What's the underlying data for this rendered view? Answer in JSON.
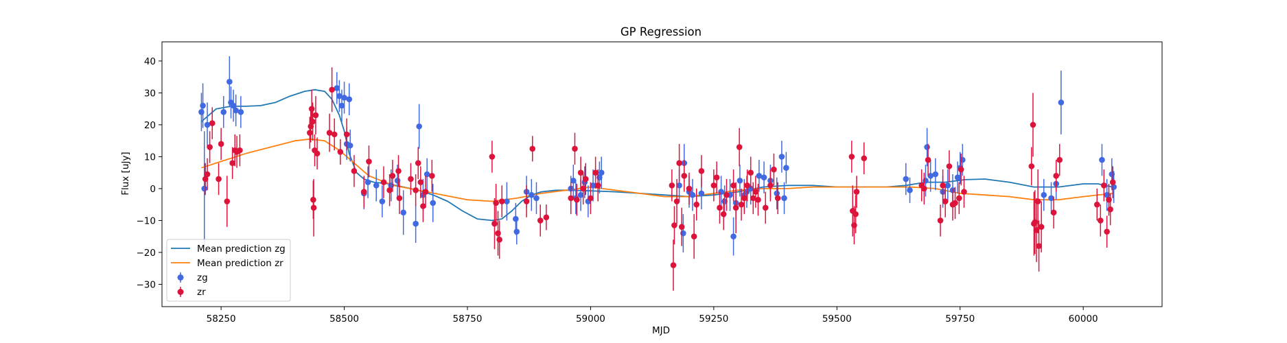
{
  "chart_data": {
    "type": "scatter",
    "title": "GP Regression",
    "xlabel": "MJD",
    "ylabel": "Flux [uJy]",
    "xlim": [
      58130,
      60160
    ],
    "ylim": [
      -37,
      46
    ],
    "xticks": [
      58250,
      58500,
      58750,
      59000,
      59250,
      59500,
      59750,
      60000
    ],
    "yticks": [
      -30,
      -20,
      -10,
      0,
      10,
      20,
      30,
      40
    ],
    "grid": false,
    "legend_position": "lower-left",
    "colors": {
      "zg_points": "#4169e1",
      "zr_points": "#dc143c",
      "zg_line": "#1f77b4",
      "zr_line": "#ff7f0e"
    },
    "lines": [
      {
        "name": "Mean prediction zg",
        "color": "#1f77b4",
        "x": [
          58210,
          58240,
          58270,
          58300,
          58330,
          58360,
          58390,
          58420,
          58440,
          58460,
          58475,
          58490,
          58500,
          58510,
          58525,
          58540,
          58560,
          58590,
          58620,
          58650,
          58680,
          58710,
          58740,
          58770,
          58800,
          58820,
          58840,
          58860,
          58880,
          58900,
          58930,
          58960,
          59000,
          59050,
          59100,
          59150,
          59200,
          59250,
          59300,
          59350,
          59400,
          59450,
          59500,
          59550,
          59600,
          59640,
          59680,
          59720,
          59760,
          59800,
          59850,
          59900,
          59950,
          60000,
          60030,
          60060
        ],
        "y": [
          21,
          25,
          25.8,
          25.8,
          26,
          27,
          29,
          30.5,
          31,
          30.5,
          28,
          23,
          18,
          11,
          5,
          3,
          2,
          1.5,
          0.5,
          -0.5,
          -2,
          -4,
          -7,
          -9.5,
          -10,
          -9.5,
          -7,
          -4,
          -2,
          -1,
          -0.5,
          -0.5,
          -0.7,
          -1,
          -1.5,
          -2,
          -2.5,
          -2,
          -1,
          0.5,
          1,
          1,
          0.5,
          0.5,
          0.5,
          1,
          2,
          2,
          2.8,
          3,
          2,
          0.5,
          0.5,
          1.5,
          1.5,
          0.5
        ]
      },
      {
        "name": "Mean prediction zr",
        "color": "#ff7f0e",
        "x": [
          58210,
          58250,
          58300,
          58350,
          58400,
          58430,
          58460,
          58490,
          58520,
          58550,
          58600,
          58650,
          58700,
          58750,
          58800,
          58850,
          58900,
          58950,
          59000,
          59050,
          59100,
          59150,
          59200,
          59250,
          59300,
          59350,
          59400,
          59450,
          59500,
          59550,
          59600,
          59650,
          59700,
          59750,
          59800,
          59850,
          59900,
          59950,
          60000,
          60060
        ],
        "y": [
          6.5,
          8.5,
          11,
          13,
          15,
          15.5,
          15,
          12,
          8,
          4,
          1,
          -0.5,
          -2,
          -3.5,
          -4,
          -3,
          -1.5,
          -0.5,
          0.5,
          -0.5,
          -1.5,
          -2.5,
          -2.5,
          -1.5,
          -0.5,
          0,
          0,
          0.5,
          0.5,
          0.5,
          0.5,
          0.5,
          0,
          -1.5,
          -2,
          -2.5,
          -3.5,
          -3.5,
          -2.5,
          -1.5
        ]
      }
    ],
    "series": [
      {
        "name": "zg",
        "color": "#4169e1",
        "points": [
          [
            58210,
            24,
            6
          ],
          [
            58213,
            26,
            7
          ],
          [
            58216,
            0,
            18
          ],
          [
            58222,
            20,
            7
          ],
          [
            58255,
            24,
            5
          ],
          [
            58267,
            33.5,
            8
          ],
          [
            58270,
            27,
            5
          ],
          [
            58275,
            26,
            5
          ],
          [
            58280,
            24.5,
            5
          ],
          [
            58290,
            24,
            5
          ],
          [
            58485,
            31.5,
            5
          ],
          [
            58490,
            29,
            5
          ],
          [
            58495,
            26,
            5
          ],
          [
            58500,
            28.5,
            5
          ],
          [
            58510,
            28,
            5
          ],
          [
            58505,
            14,
            5
          ],
          [
            58512,
            13.5,
            5
          ],
          [
            58540,
            -1.5,
            5
          ],
          [
            58548,
            2,
            5
          ],
          [
            58565,
            1,
            5
          ],
          [
            58577,
            -4,
            5
          ],
          [
            58595,
            1,
            5
          ],
          [
            58608,
            2.5,
            5
          ],
          [
            58620,
            -7.5,
            7
          ],
          [
            58645,
            -11,
            6
          ],
          [
            58652,
            19.5,
            7
          ],
          [
            58660,
            -2,
            5
          ],
          [
            58668,
            4.5,
            5
          ],
          [
            58680,
            -4.5,
            6
          ],
          [
            58830,
            -4,
            6
          ],
          [
            58848,
            -9.5,
            5
          ],
          [
            58850,
            -13.5,
            4
          ],
          [
            58870,
            -1,
            5
          ],
          [
            58880,
            -2,
            5
          ],
          [
            58890,
            -3,
            5
          ],
          [
            58960,
            0,
            4
          ],
          [
            58965,
            2.5,
            5
          ],
          [
            58970,
            -3,
            5
          ],
          [
            58980,
            -2,
            5
          ],
          [
            58988,
            2,
            5
          ],
          [
            58995,
            -4,
            5
          ],
          [
            59005,
            1,
            5
          ],
          [
            59018,
            3.5,
            5
          ],
          [
            59022,
            5,
            5
          ],
          [
            59180,
            1,
            5
          ],
          [
            59188,
            -14,
            6
          ],
          [
            59190,
            8,
            6
          ],
          [
            59200,
            -1,
            5
          ],
          [
            59207,
            -2,
            5
          ],
          [
            59225,
            -1.5,
            5
          ],
          [
            59265,
            -1,
            5
          ],
          [
            59272,
            -4,
            5
          ],
          [
            59283,
            -2,
            5
          ],
          [
            59290,
            -15,
            6
          ],
          [
            59295,
            -4.5,
            5
          ],
          [
            59303,
            2.5,
            5
          ],
          [
            59312,
            -2,
            5
          ],
          [
            59317,
            -1,
            5
          ],
          [
            59325,
            0,
            5
          ],
          [
            59342,
            4,
            5
          ],
          [
            59352,
            3.5,
            5
          ],
          [
            59365,
            2.5,
            5
          ],
          [
            59378,
            -1.5,
            5
          ],
          [
            59388,
            10,
            5
          ],
          [
            59393,
            -3,
            5
          ],
          [
            59397,
            6.5,
            5
          ],
          [
            59640,
            3,
            5
          ],
          [
            59648,
            -0.5,
            4
          ],
          [
            59680,
            2.5,
            5
          ],
          [
            59683,
            13,
            6
          ],
          [
            59690,
            4,
            5
          ],
          [
            59700,
            4.5,
            5
          ],
          [
            59715,
            -1,
            5
          ],
          [
            59725,
            1,
            5
          ],
          [
            59735,
            -0.5,
            5
          ],
          [
            59745,
            3.5,
            5
          ],
          [
            59750,
            6.5,
            5
          ],
          [
            59755,
            9,
            5
          ],
          [
            59920,
            -2,
            5
          ],
          [
            59935,
            -3,
            5
          ],
          [
            59945,
            1.5,
            5
          ],
          [
            59955,
            27,
            10
          ],
          [
            60038,
            9,
            5
          ],
          [
            60048,
            -2,
            5
          ],
          [
            60058,
            4.5,
            5
          ],
          [
            60062,
            0.5,
            5
          ]
        ]
      },
      {
        "name": "zr",
        "color": "#dc143c",
        "points": [
          [
            58218,
            3,
            5
          ],
          [
            58222,
            4.5,
            5
          ],
          [
            58227,
            13,
            5
          ],
          [
            58232,
            20.5,
            5
          ],
          [
            58245,
            3,
            5
          ],
          [
            58250,
            14,
            5
          ],
          [
            58262,
            -4,
            8
          ],
          [
            58273,
            8,
            5
          ],
          [
            58278,
            12,
            5
          ],
          [
            58282,
            11.5,
            5
          ],
          [
            58288,
            12,
            5
          ],
          [
            58430,
            17.5,
            5
          ],
          [
            58432,
            19.5,
            5
          ],
          [
            58434,
            25,
            6
          ],
          [
            58436,
            21,
            6
          ],
          [
            58437,
            -3.5,
            6
          ],
          [
            58438,
            -6,
            9
          ],
          [
            58440,
            12,
            5
          ],
          [
            58442,
            23,
            6
          ],
          [
            58445,
            11,
            5
          ],
          [
            58470,
            17.5,
            6
          ],
          [
            58475,
            31,
            7
          ],
          [
            58480,
            17,
            5
          ],
          [
            58492,
            11.5,
            4
          ],
          [
            58505,
            17,
            5
          ],
          [
            58520,
            5.5,
            5
          ],
          [
            58540,
            -1,
            5
          ],
          [
            58550,
            8.5,
            5
          ],
          [
            58580,
            2,
            5
          ],
          [
            58592,
            -0.5,
            5
          ],
          [
            58598,
            4,
            5
          ],
          [
            58610,
            5.5,
            5
          ],
          [
            58612,
            -3,
            5
          ],
          [
            58635,
            3,
            5
          ],
          [
            58645,
            -0.5,
            5
          ],
          [
            58650,
            8,
            5
          ],
          [
            58655,
            2,
            5
          ],
          [
            58660,
            -5.5,
            5
          ],
          [
            58665,
            -1,
            5
          ],
          [
            58678,
            4,
            5
          ],
          [
            58800,
            10,
            5
          ],
          [
            58805,
            -11,
            8
          ],
          [
            58808,
            -4.5,
            6
          ],
          [
            58812,
            -14,
            7
          ],
          [
            58815,
            -16,
            6
          ],
          [
            58820,
            -4,
            5
          ],
          [
            58870,
            -4,
            5
          ],
          [
            58882,
            12.5,
            4
          ],
          [
            58898,
            -10,
            5
          ],
          [
            58910,
            -9,
            4
          ],
          [
            58960,
            -3,
            5
          ],
          [
            58968,
            12.5,
            5
          ],
          [
            58972,
            -3.5,
            5
          ],
          [
            58980,
            5,
            5
          ],
          [
            58985,
            0,
            5
          ],
          [
            58990,
            3,
            5
          ],
          [
            59000,
            -3,
            5
          ],
          [
            59010,
            5,
            5
          ],
          [
            59015,
            1,
            5
          ],
          [
            59165,
            1,
            5
          ],
          [
            59168,
            -24,
            8
          ],
          [
            59170,
            -11.5,
            6
          ],
          [
            59175,
            -4,
            7
          ],
          [
            59180,
            8,
            6
          ],
          [
            59185,
            -12,
            6
          ],
          [
            59190,
            4,
            5
          ],
          [
            59200,
            0,
            5
          ],
          [
            59210,
            -15,
            7
          ],
          [
            59215,
            -5,
            5
          ],
          [
            59225,
            5.5,
            5
          ],
          [
            59250,
            1,
            5
          ],
          [
            59256,
            3.5,
            5
          ],
          [
            59262,
            -6,
            5
          ],
          [
            59270,
            -8,
            5
          ],
          [
            59276,
            -2,
            5
          ],
          [
            59290,
            1,
            5
          ],
          [
            59295,
            -6,
            8
          ],
          [
            59302,
            13,
            6
          ],
          [
            59306,
            -5,
            5
          ],
          [
            59312,
            -3,
            5
          ],
          [
            59318,
            1,
            5
          ],
          [
            59325,
            5,
            5
          ],
          [
            59330,
            -3,
            5
          ],
          [
            59335,
            -1,
            5
          ],
          [
            59340,
            -3.5,
            5
          ],
          [
            59355,
            -6,
            5
          ],
          [
            59365,
            1,
            5
          ],
          [
            59372,
            6,
            5
          ],
          [
            59380,
            -3,
            5
          ],
          [
            59530,
            10,
            5
          ],
          [
            59532,
            -7,
            8
          ],
          [
            59535,
            -11.5,
            6
          ],
          [
            59538,
            -8,
            6
          ],
          [
            59540,
            -1,
            5
          ],
          [
            59555,
            9.5,
            5
          ],
          [
            59672,
            1,
            5
          ],
          [
            59677,
            0,
            5
          ],
          [
            59685,
            9,
            5
          ],
          [
            59710,
            -10,
            5
          ],
          [
            59715,
            1,
            5
          ],
          [
            59720,
            -4,
            5
          ],
          [
            59728,
            7,
            5
          ],
          [
            59735,
            -5,
            5
          ],
          [
            59740,
            -4.5,
            5
          ],
          [
            59748,
            -3,
            5
          ],
          [
            59752,
            6,
            5
          ],
          [
            59758,
            -1,
            5
          ],
          [
            59895,
            7,
            6
          ],
          [
            59898,
            20,
            10
          ],
          [
            59900,
            -11,
            10
          ],
          [
            59902,
            -10.5,
            10
          ],
          [
            59905,
            -13,
            10
          ],
          [
            59908,
            -4,
            10
          ],
          [
            59910,
            -18,
            8
          ],
          [
            59915,
            -12,
            8
          ],
          [
            59940,
            -7.5,
            5
          ],
          [
            59945,
            4,
            5
          ],
          [
            59952,
            9,
            5
          ],
          [
            60028,
            -5,
            5
          ],
          [
            60035,
            -10,
            5
          ],
          [
            60042,
            1,
            5
          ],
          [
            60048,
            -13.5,
            5
          ],
          [
            60052,
            -3.5,
            5
          ],
          [
            60055,
            -6.5,
            5
          ],
          [
            60060,
            2,
            5
          ]
        ]
      }
    ],
    "legend": [
      "Mean prediction zg",
      "Mean prediction zr",
      "zg",
      "zr"
    ]
  }
}
